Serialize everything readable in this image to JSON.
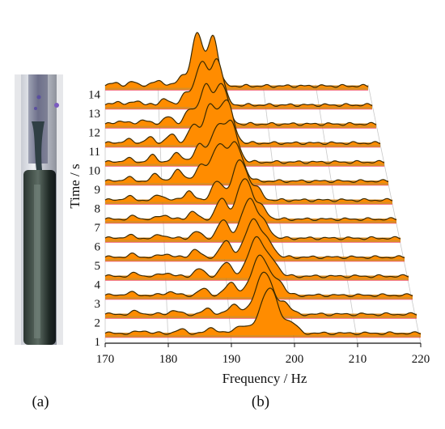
{
  "panel_labels": {
    "a": "(a)",
    "b": "(b)"
  },
  "photo": {
    "description_icon": "welded-rod-photo"
  },
  "colors": {
    "fill": "#ff8c00",
    "fill_dark": "#d47a00",
    "outline": "#3a2a00",
    "grid": "#c8c8c8",
    "highlight": "#ff3b8d"
  },
  "chart_data": {
    "type": "waterfall",
    "xlabel": "Frequency / Hz",
    "ylabel": "Time / s",
    "x_ticks": [
      170,
      180,
      190,
      200,
      210,
      220
    ],
    "xlim": [
      170,
      220
    ],
    "y_ticks": [
      1,
      2,
      3,
      4,
      5,
      6,
      7,
      8,
      9,
      10,
      11,
      12,
      13,
      14
    ],
    "series": [
      {
        "time": 1,
        "peaks": [
          [
            196.0,
            1.0,
            1.4
          ],
          [
            199.5,
            0.22,
            0.9
          ],
          [
            191.5,
            0.18,
            0.9
          ],
          [
            187.0,
            0.12,
            0.8
          ],
          [
            182.0,
            0.08,
            0.8
          ],
          [
            176.0,
            0.06,
            0.8
          ]
        ]
      },
      {
        "time": 2,
        "peaks": [
          [
            195.5,
            0.95,
            1.3
          ],
          [
            198.8,
            0.25,
            0.9
          ],
          [
            190.8,
            0.22,
            0.9
          ],
          [
            186.5,
            0.12,
            0.8
          ],
          [
            181.0,
            0.08,
            0.8
          ],
          [
            175.0,
            0.06,
            0.8
          ]
        ]
      },
      {
        "time": 3,
        "peaks": [
          [
            195.2,
            0.9,
            1.3
          ],
          [
            198.2,
            0.3,
            0.9
          ],
          [
            190.5,
            0.28,
            0.9
          ],
          [
            186.0,
            0.14,
            0.8
          ],
          [
            180.5,
            0.08,
            0.8
          ],
          [
            174.0,
            0.06,
            0.8
          ]
        ]
      },
      {
        "time": 4,
        "peaks": [
          [
            195.0,
            0.88,
            1.3
          ],
          [
            197.8,
            0.28,
            0.9
          ],
          [
            190.0,
            0.3,
            0.9
          ],
          [
            185.5,
            0.16,
            0.8
          ],
          [
            180.0,
            0.08,
            0.8
          ],
          [
            175.0,
            0.06,
            0.8
          ]
        ]
      },
      {
        "time": 5,
        "peaks": [
          [
            194.8,
            0.85,
            1.3
          ],
          [
            197.5,
            0.26,
            0.9
          ],
          [
            190.2,
            0.36,
            0.9
          ],
          [
            185.0,
            0.16,
            0.8
          ],
          [
            180.0,
            0.08,
            0.8
          ],
          [
            174.5,
            0.06,
            0.8
          ]
        ]
      },
      {
        "time": 6,
        "peaks": [
          [
            194.5,
            0.88,
            1.3
          ],
          [
            197.2,
            0.24,
            0.9
          ],
          [
            190.0,
            0.4,
            0.9
          ],
          [
            185.5,
            0.14,
            0.8
          ],
          [
            179.5,
            0.08,
            0.8
          ],
          [
            174.0,
            0.06,
            0.8
          ]
        ]
      },
      {
        "time": 7,
        "peaks": [
          [
            194.0,
            0.9,
            1.3
          ],
          [
            197.0,
            0.22,
            0.9
          ],
          [
            190.0,
            0.45,
            0.9
          ],
          [
            185.0,
            0.16,
            0.8
          ],
          [
            180.0,
            0.1,
            0.8
          ],
          [
            175.0,
            0.06,
            0.8
          ]
        ]
      },
      {
        "time": 8,
        "peaks": [
          [
            193.5,
            0.88,
            1.3
          ],
          [
            196.5,
            0.22,
            0.9
          ],
          [
            189.5,
            0.4,
            1.0
          ],
          [
            184.5,
            0.2,
            0.8
          ],
          [
            179.5,
            0.12,
            0.8
          ],
          [
            174.0,
            0.08,
            0.8
          ]
        ]
      },
      {
        "time": 9,
        "peaks": [
          [
            193.0,
            0.8,
            1.3
          ],
          [
            190.0,
            0.75,
            1.2
          ],
          [
            187.0,
            0.35,
            0.9
          ],
          [
            183.0,
            0.25,
            0.9
          ],
          [
            179.0,
            0.15,
            0.8
          ],
          [
            174.0,
            0.08,
            0.8
          ]
        ]
      },
      {
        "time": 10,
        "peaks": [
          [
            192.5,
            0.85,
            1.2
          ],
          [
            190.0,
            0.7,
            1.1
          ],
          [
            187.0,
            0.4,
            0.9
          ],
          [
            183.0,
            0.2,
            0.9
          ],
          [
            178.5,
            0.14,
            0.8
          ],
          [
            174.0,
            0.08,
            0.8
          ]
        ]
      },
      {
        "time": 11,
        "peaks": [
          [
            192.0,
            0.95,
            1.2
          ],
          [
            189.0,
            0.8,
            1.1
          ],
          [
            186.0,
            0.38,
            0.9
          ],
          [
            182.0,
            0.18,
            0.9
          ],
          [
            178.0,
            0.12,
            0.8
          ],
          [
            174.0,
            0.08,
            0.8
          ]
        ]
      },
      {
        "time": 12,
        "peaks": [
          [
            191.5,
            0.9,
            1.1
          ],
          [
            188.5,
            0.85,
            1.1
          ],
          [
            185.5,
            0.3,
            0.9
          ],
          [
            181.5,
            0.16,
            0.9
          ],
          [
            177.0,
            0.1,
            0.8
          ],
          [
            173.0,
            0.08,
            0.8
          ]
        ]
      },
      {
        "time": 13,
        "peaks": [
          [
            191.0,
            1.0,
            1.1
          ],
          [
            188.0,
            0.95,
            1.1
          ],
          [
            185.0,
            0.25,
            0.9
          ],
          [
            181.0,
            0.14,
            0.8
          ],
          [
            176.0,
            0.1,
            0.8
          ],
          [
            172.5,
            0.08,
            0.8
          ]
        ]
      },
      {
        "time": 14,
        "peaks": [
          [
            190.5,
            1.1,
            1.0
          ],
          [
            187.5,
            1.2,
            1.0
          ],
          [
            184.5,
            0.22,
            0.9
          ],
          [
            180.0,
            0.14,
            0.8
          ],
          [
            175.5,
            0.1,
            0.8
          ],
          [
            172.0,
            0.08,
            0.8
          ]
        ]
      }
    ]
  }
}
